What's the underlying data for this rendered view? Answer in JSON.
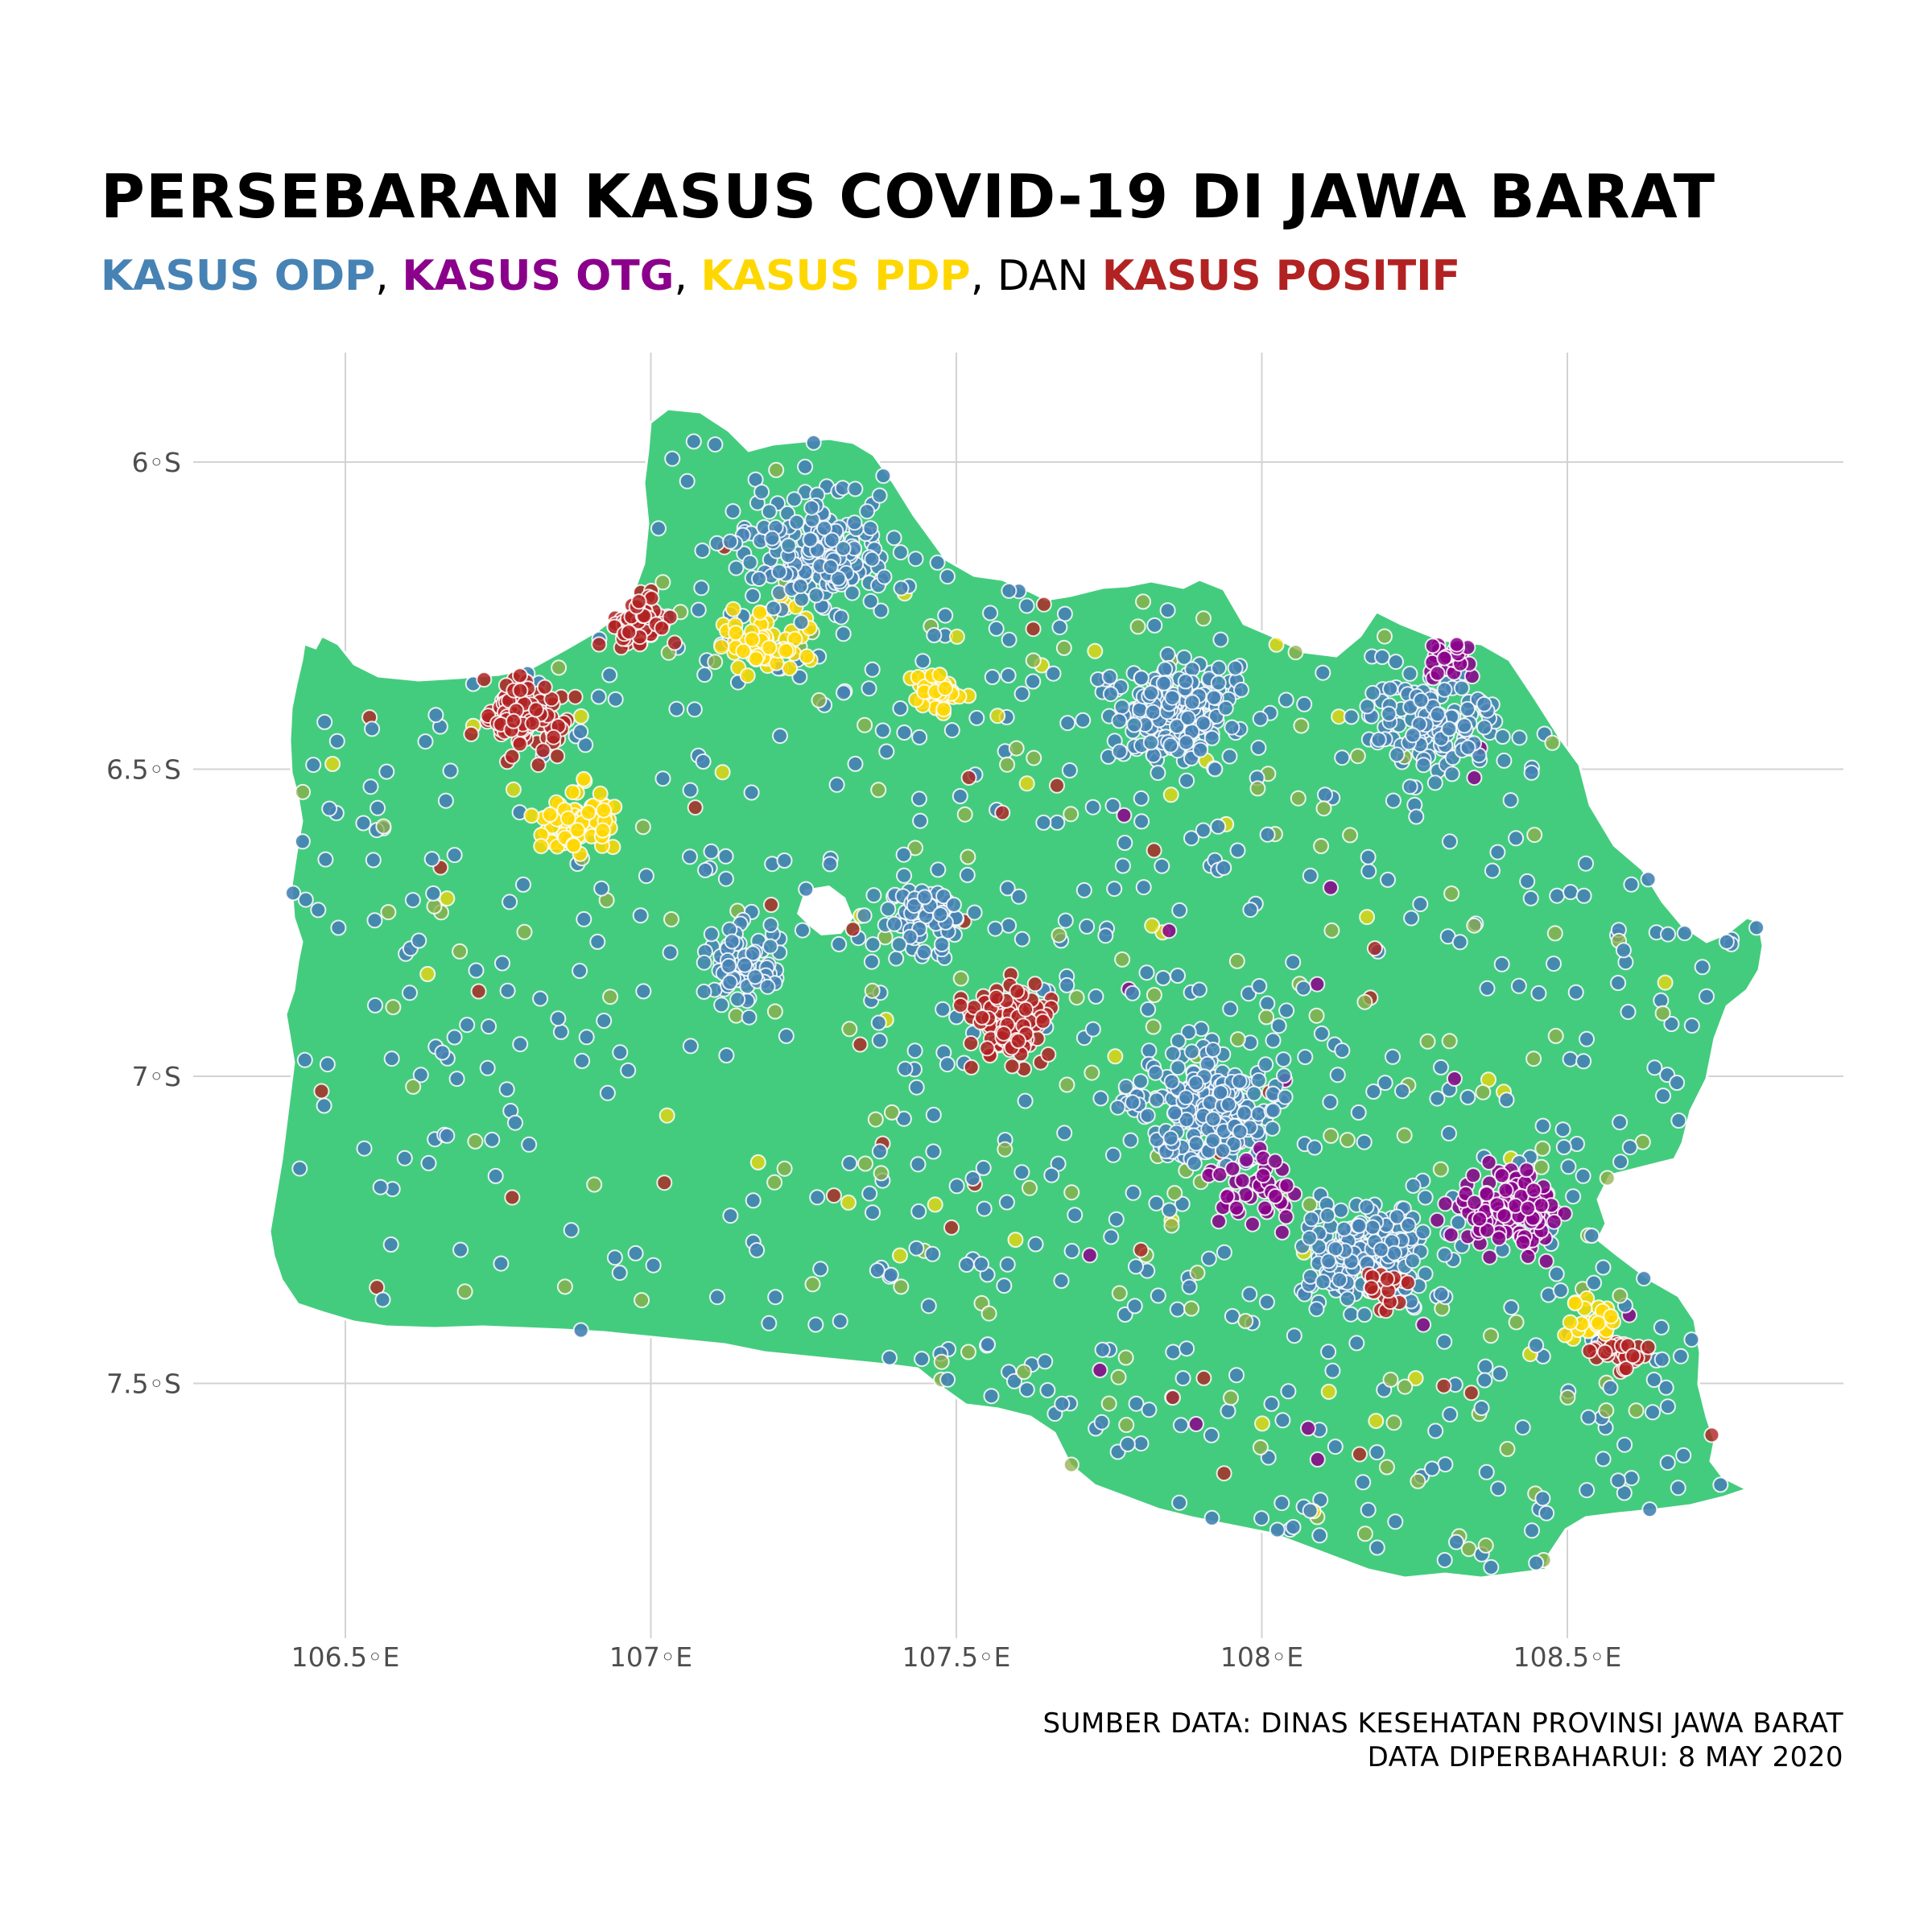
{
  "title": "PERSEBARAN KASUS COVID-19 DI JAWA BARAT",
  "subtitle": {
    "odp": "KASUS ODP",
    "sep1": ", ",
    "otg": "KASUS OTG",
    "sep2": ", ",
    "pdp": "KASUS PDP",
    "sep3": ", DAN ",
    "positif": "KASUS POSITIF"
  },
  "colors": {
    "odp": "#4682B4",
    "otg": "#8B008B",
    "pdp": "#FFD700",
    "positif": "#B22222",
    "land": "#44CC7E",
    "grid": "#d3d3d3"
  },
  "axes": {
    "x_ticks": [
      "106.5◦E",
      "107◦E",
      "107.5◦E",
      "108◦E",
      "108.5◦E"
    ],
    "y_ticks": [
      "6◦S",
      "6.5◦S",
      "7◦S",
      "7.5◦S"
    ],
    "x_range": [
      106.25,
      108.95
    ],
    "y_range": [
      -5.82,
      -7.9
    ]
  },
  "source": {
    "line1": "SUMBER DATA: DINAS KESEHATAN PROVINSI JAWA BARAT",
    "line2": "DATA DIPERBAHARUI:  8 MAY 2020"
  },
  "chart_data": {
    "type": "scatter",
    "title": "PERSEBARAN KASUS COVID-19 DI JAWA BARAT",
    "series": [
      {
        "name": "KASUS ODP",
        "color": "#4682B4"
      },
      {
        "name": "KASUS OTG",
        "color": "#8B008B"
      },
      {
        "name": "KASUS PDP",
        "color": "#FFD700"
      },
      {
        "name": "KASUS POSITIF",
        "color": "#B22222"
      }
    ],
    "xlim": [
      106.25,
      108.95
    ],
    "ylim": [
      -7.9,
      -5.82
    ],
    "grid": true,
    "legend": "subtitle"
  }
}
